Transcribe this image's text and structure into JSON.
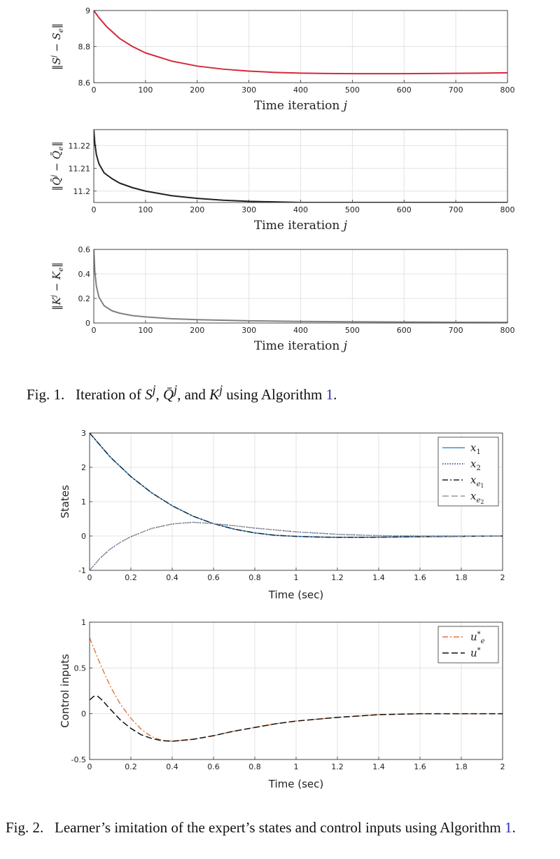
{
  "chart_data": [
    {
      "type": "line",
      "id": "c1",
      "xlabel": "Time iteration j",
      "ylabel": "||S^j − S_e||",
      "xlim": [
        0,
        800
      ],
      "ylim": [
        8.6,
        9
      ],
      "xticks": [
        "0",
        "100",
        "200",
        "300",
        "400",
        "500",
        "600",
        "700",
        "800"
      ],
      "yticks": [
        "8.6",
        "8.8",
        "9"
      ],
      "grid": true,
      "series": [
        {
          "color": "#d42a3c",
          "x": [
            0,
            10,
            25,
            50,
            75,
            100,
            150,
            200,
            250,
            300,
            350,
            400,
            450,
            500,
            550,
            600,
            650,
            700,
            750,
            800
          ],
          "y": [
            9.0,
            8.96,
            8.91,
            8.845,
            8.8,
            8.765,
            8.72,
            8.692,
            8.675,
            8.664,
            8.657,
            8.653,
            8.651,
            8.65,
            8.65,
            8.65,
            8.651,
            8.652,
            8.653,
            8.655
          ]
        }
      ]
    },
    {
      "type": "line",
      "id": "c2",
      "xlabel": "Time iteration j",
      "ylabel": "||Q̄^j − Q̄_e||",
      "xlim": [
        0,
        800
      ],
      "ylim": [
        11.195,
        11.227
      ],
      "xticks": [
        "0",
        "100",
        "200",
        "300",
        "400",
        "500",
        "600",
        "700",
        "800"
      ],
      "yticks": [
        "11.2",
        "11.21",
        "11.22"
      ],
      "grid": true,
      "series": [
        {
          "color": "#222222",
          "x": [
            0,
            2,
            5,
            10,
            20,
            35,
            50,
            75,
            100,
            150,
            200,
            250,
            300,
            400,
            500,
            600,
            700,
            800
          ],
          "y": [
            11.227,
            11.221,
            11.216,
            11.212,
            11.208,
            11.2055,
            11.2035,
            11.2015,
            11.2,
            11.198,
            11.1968,
            11.196,
            11.1955,
            11.195,
            11.195,
            11.195,
            11.195,
            11.195
          ]
        }
      ]
    },
    {
      "type": "line",
      "id": "c3",
      "xlabel": "Time iteration j",
      "ylabel": "||K^j − K_e||",
      "xlim": [
        0,
        800
      ],
      "ylim": [
        0,
        0.6
      ],
      "xticks": [
        "0",
        "100",
        "200",
        "300",
        "400",
        "500",
        "600",
        "700",
        "800"
      ],
      "yticks": [
        "0",
        "0.2",
        "0.4",
        "0.6"
      ],
      "grid": true,
      "series": [
        {
          "color": "#808080",
          "x": [
            0,
            2,
            5,
            10,
            20,
            35,
            50,
            75,
            100,
            150,
            200,
            300,
            400,
            500,
            600,
            700,
            800
          ],
          "y": [
            0.6,
            0.42,
            0.3,
            0.21,
            0.14,
            0.1,
            0.08,
            0.06,
            0.05,
            0.035,
            0.027,
            0.018,
            0.013,
            0.01,
            0.008,
            0.006,
            0.005
          ]
        }
      ]
    },
    {
      "type": "line",
      "id": "c4",
      "xlabel": "Time (sec)",
      "ylabel": "States",
      "xlim": [
        0,
        2
      ],
      "ylim": [
        -1,
        3
      ],
      "xticks": [
        "0",
        "0.2",
        "0.4",
        "0.6",
        "0.8",
        "1",
        "1.2",
        "1.4",
        "1.6",
        "1.8",
        "2"
      ],
      "yticks": [
        "-1",
        "0",
        "1",
        "2",
        "3"
      ],
      "grid": true,
      "legend": "top-right",
      "series": [
        {
          "name": "x_1",
          "color": "#3b8fd4",
          "dash": "",
          "width": 1.6,
          "x": [
            0,
            0.1,
            0.2,
            0.3,
            0.4,
            0.5,
            0.6,
            0.7,
            0.8,
            0.9,
            1.0,
            1.1,
            1.2,
            1.3,
            1.4,
            1.6,
            1.8,
            2.0
          ],
          "y": [
            3,
            2.3,
            1.73,
            1.26,
            0.88,
            0.58,
            0.36,
            0.2,
            0.09,
            0.02,
            -0.01,
            -0.03,
            -0.04,
            -0.04,
            -0.035,
            -0.02,
            -0.01,
            0
          ]
        },
        {
          "name": "x_2",
          "color": "#2b2b8a",
          "dash": "1.5,2",
          "width": 1.4,
          "x": [
            0,
            0.05,
            0.1,
            0.15,
            0.2,
            0.3,
            0.4,
            0.5,
            0.6,
            0.7,
            0.8,
            1.0,
            1.2,
            1.4,
            1.6,
            1.8,
            2.0
          ],
          "y": [
            -1,
            -0.65,
            -0.38,
            -0.18,
            -0.02,
            0.22,
            0.35,
            0.4,
            0.36,
            0.3,
            0.23,
            0.12,
            0.05,
            0.01,
            0,
            0,
            0
          ]
        },
        {
          "name": "x_e1",
          "color": "#222222",
          "dash": "8,3,2,3",
          "width": 1.4,
          "x": [
            0,
            0.1,
            0.2,
            0.3,
            0.4,
            0.5,
            0.6,
            0.7,
            0.8,
            0.9,
            1.0,
            1.1,
            1.2,
            1.3,
            1.4,
            1.6,
            1.8,
            2.0
          ],
          "y": [
            3,
            2.3,
            1.73,
            1.26,
            0.88,
            0.58,
            0.36,
            0.2,
            0.09,
            0.02,
            -0.01,
            -0.03,
            -0.04,
            -0.04,
            -0.035,
            -0.02,
            -0.01,
            0
          ]
        },
        {
          "name": "x_e2",
          "color": "#999999",
          "dash": "9,4",
          "width": 1.4,
          "x": [
            0,
            0.05,
            0.1,
            0.15,
            0.2,
            0.3,
            0.4,
            0.5,
            0.6,
            0.7,
            0.8,
            1.0,
            1.2,
            1.4,
            1.6,
            1.8,
            2.0
          ],
          "y": [
            -1,
            -0.65,
            -0.38,
            -0.18,
            -0.02,
            0.22,
            0.35,
            0.4,
            0.36,
            0.3,
            0.23,
            0.12,
            0.05,
            0.01,
            0,
            0,
            0
          ]
        }
      ]
    },
    {
      "type": "line",
      "id": "c5",
      "xlabel": "Time (sec)",
      "ylabel": "Control inputs",
      "xlim": [
        0,
        2
      ],
      "ylim": [
        -0.5,
        1
      ],
      "xticks": [
        "0",
        "0.2",
        "0.4",
        "0.6",
        "0.8",
        "1",
        "1.2",
        "1.4",
        "1.6",
        "1.8",
        "2"
      ],
      "yticks": [
        "-0.5",
        "0",
        "0.5",
        "1"
      ],
      "grid": true,
      "legend": "top-right",
      "series": [
        {
          "name": "u_e*",
          "color": "#e0773a",
          "dash": "8,3,2,3",
          "width": 1.4,
          "x": [
            0,
            0.05,
            0.1,
            0.15,
            0.2,
            0.25,
            0.3,
            0.35,
            0.4,
            0.5,
            0.6,
            0.7,
            0.8,
            0.9,
            1.0,
            1.2,
            1.4,
            1.6,
            1.8,
            2.0
          ],
          "y": [
            0.83,
            0.55,
            0.3,
            0.1,
            -0.05,
            -0.17,
            -0.25,
            -0.29,
            -0.3,
            -0.28,
            -0.24,
            -0.19,
            -0.15,
            -0.11,
            -0.08,
            -0.04,
            -0.01,
            0,
            0,
            0
          ]
        },
        {
          "name": "u*",
          "color": "#111111",
          "dash": "9,4",
          "width": 1.5,
          "x": [
            0,
            0.02,
            0.04,
            0.06,
            0.1,
            0.15,
            0.2,
            0.25,
            0.3,
            0.35,
            0.4,
            0.5,
            0.6,
            0.7,
            0.8,
            0.9,
            1.0,
            1.2,
            1.4,
            1.6,
            1.8,
            2.0
          ],
          "y": [
            0.15,
            0.19,
            0.19,
            0.15,
            0.05,
            -0.07,
            -0.16,
            -0.23,
            -0.27,
            -0.295,
            -0.3,
            -0.28,
            -0.24,
            -0.19,
            -0.15,
            -0.11,
            -0.08,
            -0.04,
            -0.01,
            0,
            0,
            0
          ]
        }
      ]
    }
  ],
  "captions": {
    "fig1": {
      "label": "Fig. 1.",
      "text_a": "Iteration of ",
      "s": "S",
      "s_sup": "j",
      "comma1": ", ",
      "q": "Q̄",
      "q_sup": "j",
      "and": ", and ",
      "k": "K",
      "k_sup": "j",
      "text_b": " using Algorithm ",
      "ref": "1",
      "end": "."
    },
    "fig2": {
      "label": "Fig. 2.",
      "text": "Learner’s imitation of the expert’s states and control inputs using Algorithm ",
      "ref": "1",
      "end": "."
    }
  }
}
